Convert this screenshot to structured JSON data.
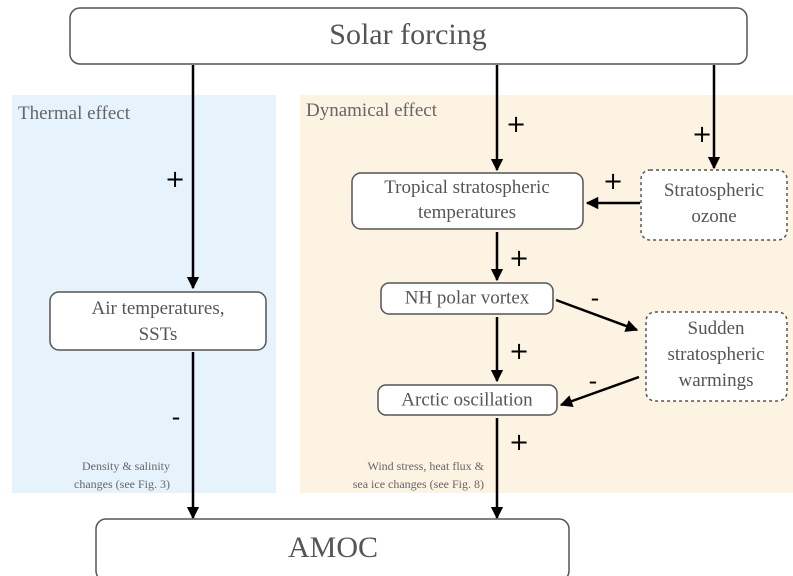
{
  "panels": [
    {
      "label": "Thermal effect"
    },
    {
      "label": "Dynamical effect"
    }
  ],
  "nodes": [
    {
      "label": [
        "Solar forcing"
      ]
    },
    {
      "label": [
        "Tropical stratospheric",
        "temperatures"
      ]
    },
    {
      "label": [
        "Stratospheric",
        "ozone"
      ]
    },
    {
      "label": [
        "Air temperatures,",
        "SSTs"
      ]
    },
    {
      "label": [
        "NH polar vortex"
      ]
    },
    {
      "label": [
        "Sudden",
        "stratospheric",
        "warmings"
      ]
    },
    {
      "label": [
        "Arctic oscillation"
      ]
    },
    {
      "label": [
        "AMOC"
      ]
    }
  ],
  "edges": [
    {
      "sign": "+"
    },
    {
      "sign": "-"
    },
    {
      "sign": "+"
    },
    {
      "sign": "+"
    },
    {
      "sign": "+"
    },
    {
      "sign": "+"
    },
    {
      "sign": "-"
    },
    {
      "sign": "+"
    },
    {
      "sign": "-"
    },
    {
      "sign": "+"
    }
  ],
  "notes": [
    {
      "lines": [
        "Density & salinity",
        "changes (see Fig. 3)"
      ]
    },
    {
      "lines": [
        "Wind stress, heat flux &",
        "sea ice changes (see Fig. 8)"
      ]
    }
  ]
}
